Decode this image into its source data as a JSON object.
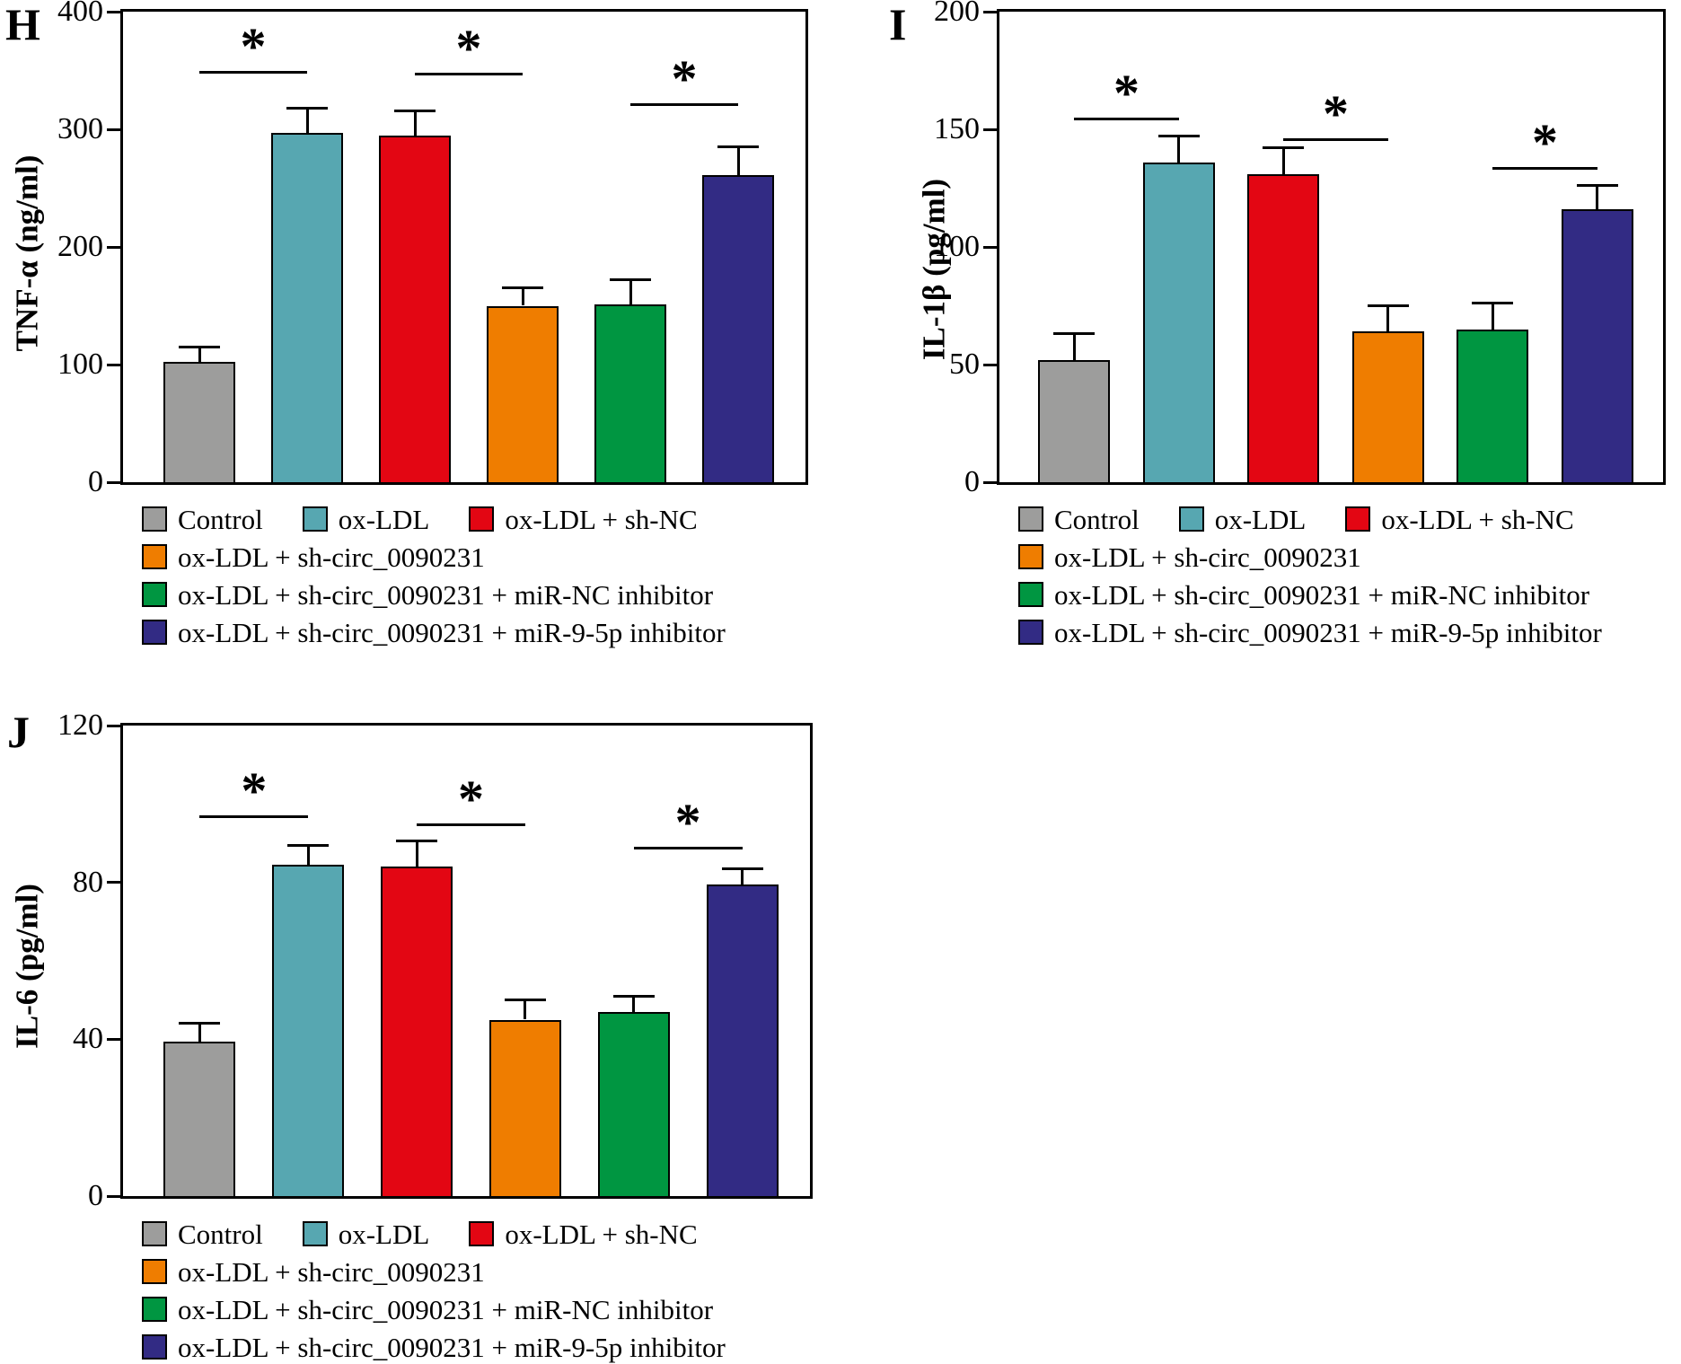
{
  "figure": {
    "background": "#ffffff",
    "axis_color": "#000000"
  },
  "colors": {
    "gray": "#9D9D9C",
    "teal": "#57A7B1",
    "red": "#E30613",
    "orange": "#EF7D00",
    "green": "#009641",
    "navy": "#322B84"
  },
  "groups": [
    "Control",
    "ox-LDL",
    "ox-LDL + sh-NC",
    "ox-LDL + sh-circ_0090231",
    "ox-LDL + sh-circ_0090231 + miR-NC inhibitor",
    "ox-LDL + sh-circ_0090231 + miR-9-5p inhibitor"
  ],
  "group_colors": [
    "gray",
    "teal",
    "red",
    "orange",
    "green",
    "navy"
  ],
  "legend_rows": [
    [
      0,
      1,
      2
    ],
    [
      3
    ],
    [
      4
    ],
    [
      5
    ]
  ],
  "chart_data": [
    {
      "panel": "H",
      "type": "bar",
      "ylabel": "TNF-α (ng/ml)",
      "xlabel": "",
      "ylim": [
        0,
        400
      ],
      "yticks": [
        0,
        100,
        200,
        300,
        400
      ],
      "grid": false,
      "legend_position": "below",
      "categories": [
        "Control",
        "ox-LDL",
        "ox-LDL + sh-NC",
        "ox-LDL + sh-circ_0090231",
        "ox-LDL + sh-circ_0090231 + miR-NC inhibitor",
        "ox-LDL + sh-circ_0090231 + miR-9-5p inhibitor"
      ],
      "values": [
        102,
        297,
        295,
        150,
        151,
        261
      ],
      "errors": [
        13,
        21,
        21,
        15,
        21,
        24
      ],
      "significance": [
        {
          "pair": [
            0,
            1
          ],
          "y": 350,
          "marker": "*"
        },
        {
          "pair": [
            2,
            3
          ],
          "y": 348,
          "marker": "*"
        },
        {
          "pair": [
            4,
            5
          ],
          "y": 322,
          "marker": "*"
        }
      ]
    },
    {
      "panel": "I",
      "type": "bar",
      "ylabel": "IL-1β (pg/ml)",
      "xlabel": "",
      "ylim": [
        0,
        200
      ],
      "yticks": [
        0,
        50,
        100,
        150,
        200
      ],
      "grid": false,
      "legend_position": "below",
      "categories": [
        "Control",
        "ox-LDL",
        "ox-LDL + sh-NC",
        "ox-LDL + sh-circ_0090231",
        "ox-LDL + sh-circ_0090231 + miR-NC inhibitor",
        "ox-LDL + sh-circ_0090231 + miR-9-5p inhibitor"
      ],
      "values": [
        52,
        136,
        131,
        64,
        65,
        116
      ],
      "errors": [
        11,
        11,
        11,
        11,
        11,
        10
      ],
      "significance": [
        {
          "pair": [
            0,
            1
          ],
          "y": 155,
          "marker": "*"
        },
        {
          "pair": [
            2,
            3
          ],
          "y": 146,
          "marker": "*"
        },
        {
          "pair": [
            4,
            5
          ],
          "y": 134,
          "marker": "*"
        }
      ]
    },
    {
      "panel": "J",
      "type": "bar",
      "ylabel": "IL-6 (pg/ml)",
      "xlabel": "",
      "ylim": [
        0,
        120
      ],
      "yticks": [
        0,
        40,
        80,
        120
      ],
      "grid": false,
      "legend_position": "below",
      "categories": [
        "Control",
        "ox-LDL",
        "ox-LDL + sh-NC",
        "ox-LDL + sh-circ_0090231",
        "ox-LDL + sh-circ_0090231 + miR-NC inhibitor",
        "ox-LDL + sh-circ_0090231 + miR-9-5p inhibitor"
      ],
      "values": [
        39.5,
        84.5,
        84,
        45,
        47,
        79.5
      ],
      "errors": [
        4.5,
        5,
        6.5,
        5,
        4,
        4
      ],
      "significance": [
        {
          "pair": [
            0,
            1
          ],
          "y": 97,
          "marker": "*"
        },
        {
          "pair": [
            2,
            3
          ],
          "y": 95,
          "marker": "*"
        },
        {
          "pair": [
            4,
            5
          ],
          "y": 89,
          "marker": "*"
        }
      ]
    }
  ]
}
